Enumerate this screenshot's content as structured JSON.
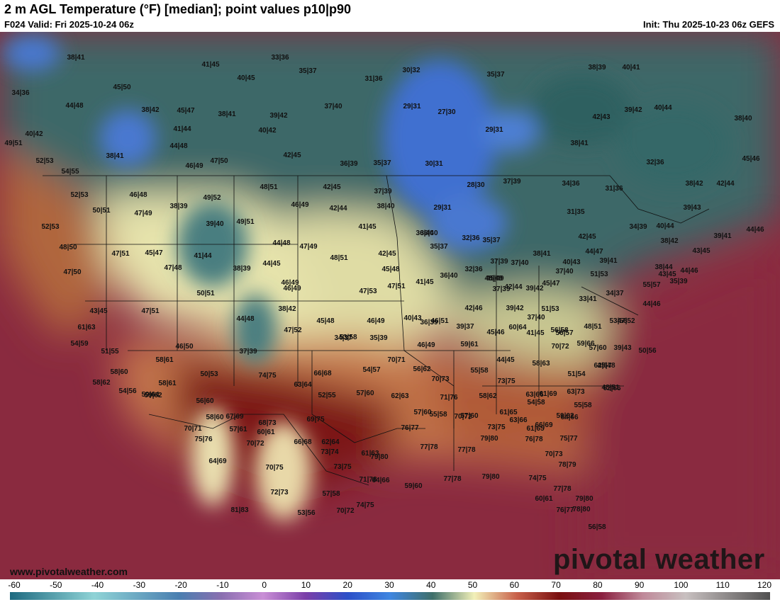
{
  "header": {
    "title": "2 m AGL Temperature (°F) [median]; point values p10|p90",
    "valid": "F024 Valid: Fri 2025-10-24 06z",
    "init": "Init: Thu 2025-10-23 06z GEFS"
  },
  "footer": {
    "website": "www.pivotalweather.com",
    "watermark": "pivotal weather"
  },
  "colorbar": {
    "ticks": [
      "-60",
      "-50",
      "-40",
      "-30",
      "-20",
      "-10",
      "0",
      "10",
      "20",
      "30",
      "40",
      "50",
      "60",
      "70",
      "80",
      "90",
      "100",
      "110",
      "120"
    ],
    "stops": [
      {
        "value": -60,
        "color": "#1e6a80"
      },
      {
        "value": -40,
        "color": "#8fd3d6"
      },
      {
        "value": -20,
        "color": "#4a7fb0"
      },
      {
        "value": -10,
        "color": "#8a6fb0"
      },
      {
        "value": 0,
        "color": "#c98fd6"
      },
      {
        "value": 10,
        "color": "#7b3fa8"
      },
      {
        "value": 20,
        "color": "#2c4fc8"
      },
      {
        "value": 30,
        "color": "#3f86e0"
      },
      {
        "value": 40,
        "color": "#3f6f6a"
      },
      {
        "value": 50,
        "color": "#f2f0b8"
      },
      {
        "value": 60,
        "color": "#c8604a"
      },
      {
        "value": 70,
        "color": "#7a1010"
      },
      {
        "value": 80,
        "color": "#8a2040"
      },
      {
        "value": 90,
        "color": "#c08a9a"
      },
      {
        "value": 100,
        "color": "#c8c0c0"
      },
      {
        "value": 120,
        "color": "#505050"
      }
    ]
  },
  "map": {
    "background_colors": {
      "ocean_warm": "#8a2a3f",
      "land_cool": "#2f5f5f",
      "land_mild": "#eae7b0",
      "cold": "#3f6fd0",
      "hot": "#7a1414"
    }
  },
  "point_values": [
    "38|41",
    "33|36",
    "30|32",
    "35|37",
    "38|39",
    "40|41",
    "41|45",
    "35|37",
    "31|36",
    "34|36",
    "45|50",
    "40|45",
    "37|40",
    "29|31",
    "27|30",
    "44|48",
    "38|42",
    "45|47",
    "38|41",
    "39|42",
    "42|43",
    "39|42",
    "40|44",
    "40|42",
    "41|44",
    "40|42",
    "38|40",
    "29|31",
    "49|51",
    "44|48",
    "38|41",
    "42|45",
    "38|41",
    "52|53",
    "47|50",
    "46|49",
    "36|39",
    "35|37",
    "30|31",
    "32|36",
    "45|46",
    "54|55",
    "42|45",
    "37|39",
    "28|30",
    "37|39",
    "34|36",
    "31|36",
    "38|42",
    "42|44",
    "52|53",
    "46|48",
    "48|51",
    "38|39",
    "49|52",
    "46|49",
    "42|44",
    "38|40",
    "29|31",
    "39|43",
    "50|51",
    "47|49",
    "36|40",
    "35|37",
    "31|35",
    "34|39",
    "40|44",
    "39|41",
    "44|46",
    "52|53",
    "39|40",
    "49|51",
    "41|45",
    "36|40",
    "42|45",
    "38|42",
    "46|49",
    "48|50",
    "44|48",
    "47|49",
    "32|36",
    "35|37",
    "38|41",
    "44|47",
    "47|51",
    "45|47",
    "41|44",
    "42|45",
    "48|51",
    "37|39",
    "37|40",
    "40|43",
    "39|41",
    "38|44",
    "44|46",
    "47|50",
    "47|48",
    "38|39",
    "44|45",
    "45|48",
    "36|40",
    "32|36",
    "43|45",
    "37|40",
    "48|49",
    "51|53",
    "55|57",
    "50|51",
    "46|49",
    "47|53",
    "47|51",
    "41|45",
    "45|49",
    "45|47",
    "42|44",
    "35|39",
    "43|45",
    "43|45",
    "47|51",
    "38|42",
    "37|39",
    "39|42",
    "33|41",
    "34|37",
    "44|46",
    "61|63",
    "44|48",
    "47|52",
    "53|58",
    "46|51",
    "42|46",
    "39|42",
    "37|40",
    "51|53",
    "41|45",
    "56|58",
    "47|52",
    "54|59",
    "45|48",
    "46|49",
    "40|43",
    "36|39",
    "39|37",
    "45|46",
    "60|64",
    "56|57",
    "48|51",
    "53|58",
    "57|60",
    "51|55",
    "46|50",
    "37|39",
    "34|37",
    "35|39",
    "46|49",
    "59|61",
    "70|72",
    "59|66",
    "45|48",
    "39|43",
    "50|56",
    "58|60",
    "58|61",
    "70|71",
    "44|45",
    "58|63",
    "62|67",
    "58|62",
    "58|61",
    "50|53",
    "66|68",
    "54|57",
    "56|62",
    "55|58",
    "51|54",
    "48|51",
    "54|56",
    "59|64",
    "74|75",
    "63|64",
    "70|73",
    "73|75",
    "63|66",
    "61|69",
    "63|73",
    "62|66",
    "59|62",
    "56|60",
    "52|55",
    "57|60",
    "62|63",
    "71|76",
    "58|62",
    "54|58",
    "55|58",
    "59|62",
    "58|60",
    "67|69",
    "68|73",
    "69|75",
    "57|60",
    "55|58",
    "57|60",
    "61|65",
    "70|71",
    "60|61",
    "70|72",
    "63|66",
    "66|69",
    "64|66",
    "57|61",
    "62|64",
    "61|65",
    "73|75",
    "76|77",
    "66|68",
    "75|76",
    "70|72",
    "61|63",
    "77|78",
    "77|78",
    "79|80",
    "76|78",
    "75|77",
    "70|73",
    "73|74",
    "64|69",
    "70|75",
    "73|75",
    "79|80",
    "78|79",
    "71|78",
    "64|66",
    "59|60",
    "77|78",
    "79|80",
    "74|75",
    "77|78",
    "72|73",
    "57|58",
    "60|61",
    "78|80",
    "76|77",
    "81|83",
    "53|56",
    "70|72",
    "74|75",
    "79|80",
    "56|58"
  ]
}
